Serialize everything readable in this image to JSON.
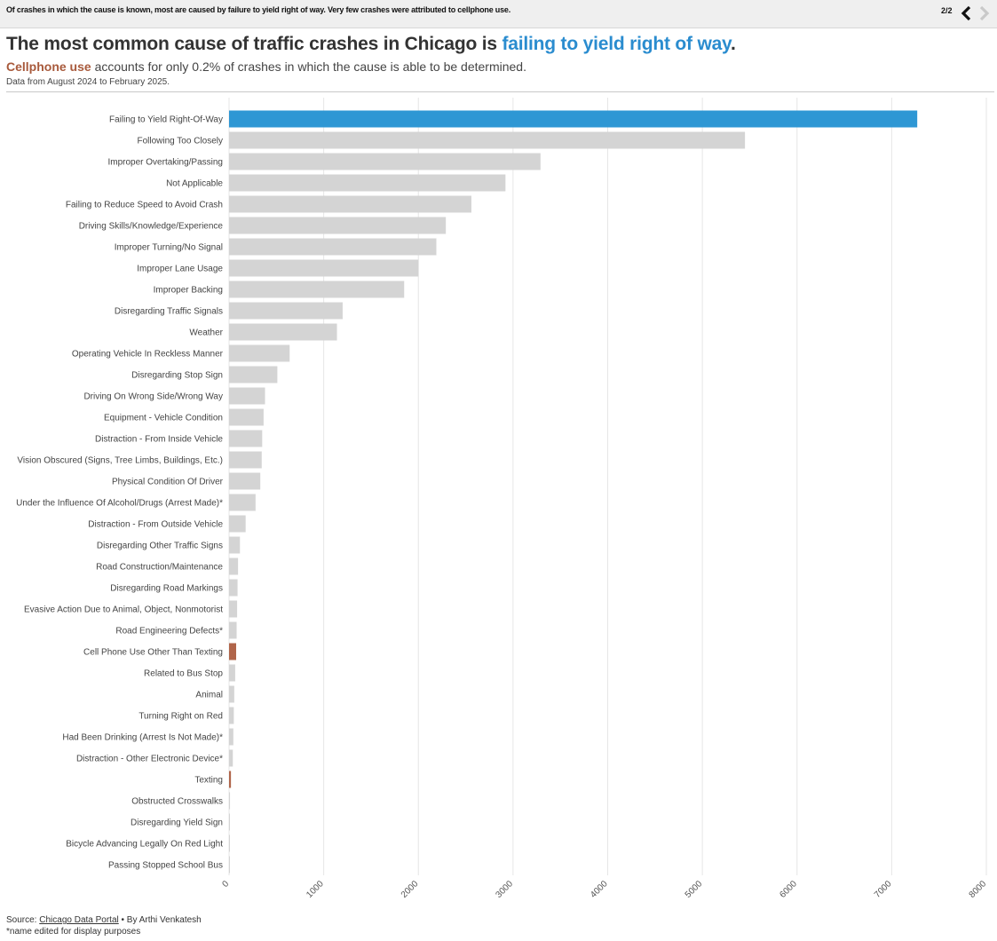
{
  "topbar": {
    "caption": "Of crashes in which the cause is known, most are caused by failure to yield right of way. Very few crashes were attributed to cellphone use.",
    "pager": "2/2"
  },
  "headline": {
    "title_prefix": "The most common cause of traffic crashes in Chicago is ",
    "title_highlight": "failing to yield right of way",
    "title_suffix": ".",
    "subtitle_highlight": "Cellphone use",
    "subtitle_rest": " accounts for only 0.2% of crashes in which the cause is able to be determined.",
    "date_range": "Data from August 2024 to February 2025."
  },
  "colors": {
    "default_bar": "#d4d4d4",
    "yield_bar": "#2e97d4",
    "cellphone_bar": "#b0654a",
    "grid": "#e6e6e6"
  },
  "chart_data": {
    "type": "bar",
    "orientation": "horizontal",
    "xlim": [
      0,
      8000
    ],
    "x_ticks": [
      0,
      1000,
      2000,
      3000,
      4000,
      5000,
      6000,
      7000,
      8000
    ],
    "grid": true,
    "categories": [
      "Failing to Yield Right-Of-Way",
      "Following Too Closely",
      "Improper Overtaking/Passing",
      "Not Applicable",
      "Failing to Reduce Speed to Avoid Crash",
      "Driving Skills/Knowledge/Experience",
      "Improper Turning/No Signal",
      "Improper Lane Usage",
      "Improper Backing",
      "Disregarding Traffic Signals",
      "Weather",
      "Operating Vehicle In Reckless Manner",
      "Disregarding Stop Sign",
      "Driving On Wrong Side/Wrong Way",
      "Equipment - Vehicle Condition",
      "Distraction - From Inside Vehicle",
      "Vision Obscured (Signs, Tree Limbs, Buildings, Etc.)",
      "Physical Condition Of Driver",
      "Under the Influence Of Alcohol/Drugs (Arrest Made)*",
      "Distraction - From Outside Vehicle",
      "Disregarding Other Traffic Signs",
      "Road Construction/Maintenance",
      "Disregarding Road Markings",
      "Evasive Action Due to Animal, Object, Nonmotorist",
      "Road Engineering Defects*",
      "Cell Phone Use Other Than Texting",
      "Related to Bus Stop",
      "Animal",
      "Turning Right on Red",
      "Had Been Drinking (Arrest Is Not Made)*",
      "Distraction - Other Electronic Device*",
      "Texting",
      "Obstructed Crosswalks",
      "Disregarding Yield Sign",
      "Bicycle Advancing Legally On Red Light",
      "Passing Stopped School Bus"
    ],
    "values": [
      7270,
      5450,
      3290,
      2920,
      2560,
      2290,
      2190,
      2000,
      1850,
      1200,
      1140,
      640,
      510,
      380,
      365,
      350,
      345,
      330,
      280,
      175,
      115,
      95,
      90,
      85,
      80,
      75,
      65,
      55,
      50,
      45,
      40,
      20,
      10,
      8,
      6,
      5
    ],
    "highlight": {
      "Failing to Yield Right-Of-Way": "yield",
      "Cell Phone Use Other Than Texting": "cellphone",
      "Texting": "cellphone"
    }
  },
  "footer": {
    "source_prefix": "Source: ",
    "source_link": "Chicago Data Portal",
    "byline": " • By Arthi Venkatesh",
    "note": "*name edited for display purposes"
  }
}
